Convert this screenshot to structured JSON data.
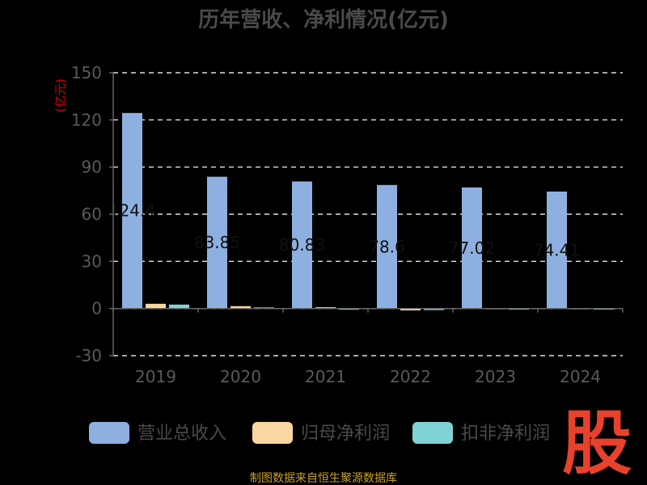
{
  "chart_data": {
    "type": "bar",
    "title": "历年营收、净利情况(亿元)",
    "unit_label": "(亿元)",
    "categories": [
      "2019",
      "2020",
      "2021",
      "2022",
      "2023",
      "2024"
    ],
    "series": [
      {
        "name": "营业总收入",
        "color": "#8eb0e0",
        "values": [
          124.4,
          83.85,
          80.83,
          78.6,
          77.02,
          74.41
        ]
      },
      {
        "name": "归母净利润",
        "color": "#fad7a0",
        "values": [
          3.0,
          1.5,
          0.8,
          -1.2,
          0.3,
          0.3
        ]
      },
      {
        "name": "扣非净利润",
        "color": "#7fd3d4",
        "values": [
          2.5,
          0.7,
          -0.5,
          -1.0,
          0.1,
          0.1
        ]
      }
    ],
    "bar_labels": [
      "124.4",
      "83.85",
      "80.83",
      "78.6",
      "77.02",
      "74.41"
    ],
    "yticks": [
      150,
      120,
      90,
      60,
      30,
      0,
      -30
    ],
    "ylim": [
      -30,
      150
    ],
    "grid": true,
    "legend_position": "bottom"
  },
  "source_text": "制图数据来自恒生聚源数据库",
  "logo": {
    "text": "股"
  }
}
